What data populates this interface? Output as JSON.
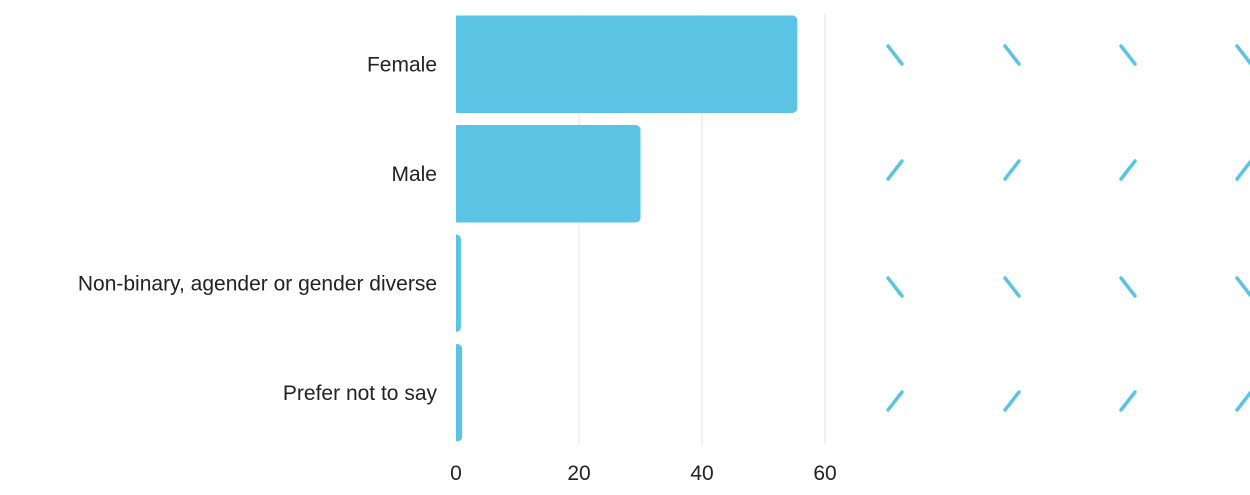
{
  "chart_data": {
    "type": "bar",
    "orientation": "horizontal",
    "categories": [
      "Female",
      "Male",
      "Non-binary, agender or gender diverse",
      "Prefer not to say"
    ],
    "values": [
      55.5,
      30,
      0.8,
      1
    ],
    "xlim": [
      0,
      60
    ],
    "xticks": [
      "0",
      "20",
      "40",
      "60"
    ],
    "title": "",
    "xlabel": "",
    "ylabel": "",
    "grid": true,
    "bar_color": "#5bc4e5"
  },
  "decoration": {
    "color": "#5bc4e5",
    "rows": [
      "\\",
      "/",
      "\\",
      "/"
    ]
  }
}
